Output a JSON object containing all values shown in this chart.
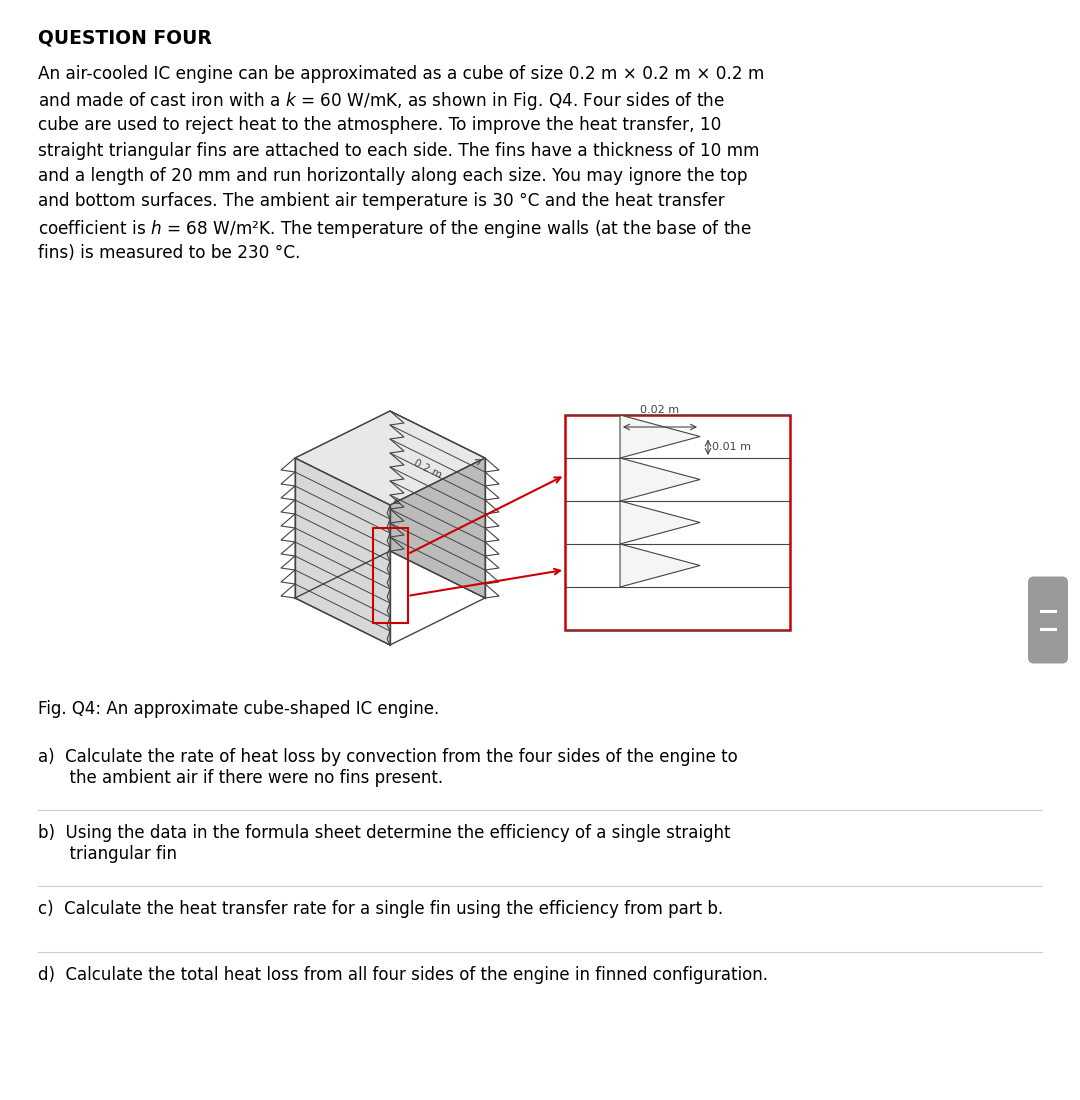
{
  "title": "QUESTION FOUR",
  "bg_color": "#ffffff",
  "text_color": "#000000",
  "line_texts": [
    "An air-cooled IC engine can be approximated as a cube of size 0.2 m × 0.2 m × 0.2 m",
    "and made of cast iron with a $k$ = 60 W/mK, as shown in Fig. Q4. Four sides of the",
    "cube are used to reject heat to the atmosphere. To improve the heat transfer, 10",
    "straight triangular fins are attached to each side. The fins have a thickness of 10 mm",
    "and a length of 20 mm and run horizontally along each size. You may ignore the top",
    "and bottom surfaces. The ambient air temperature is 30 °C and the heat transfer",
    "coefficient is $h$ = 68 W/m²K. The temperature of the engine walls (at the base of the",
    "fins) is measured to be 230 °C."
  ],
  "fig_caption": "Fig. Q4: An approximate cube-shaped IC engine.",
  "qa": "a) Calculate the rate of heat loss by convection from the four sides of the engine to\n   the ambient air if there were no fins present.",
  "qb": "b) Using the data in the formula sheet determine the efficiency of a single straight\n   triangular fin",
  "qc": "c) Calculate the heat transfer rate for a single fin using the efficiency from part b.",
  "qd": "d) Calculate the total heat loss from all four sides of the engine in finned configuration.",
  "dim_02m": "0.2 m",
  "dim_002m": "0.02 m",
  "dim_001m": "0.01 m",
  "dark_gray": "#444444",
  "red_color": "#cc0000",
  "face_light": "#e8e8e8",
  "face_mid": "#d8d8d8",
  "face_dark": "#bbbbbb"
}
